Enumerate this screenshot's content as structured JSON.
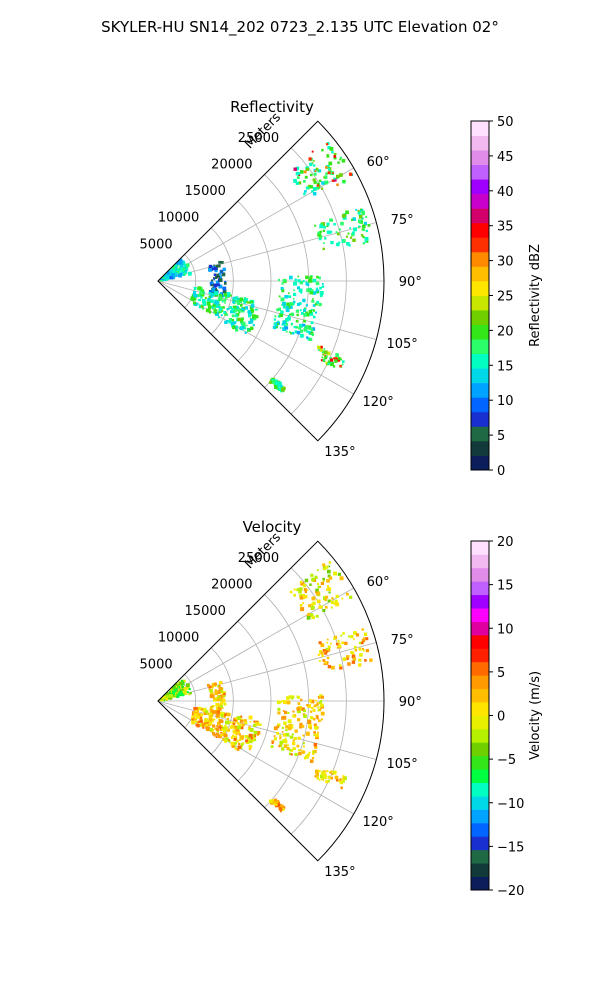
{
  "figure": {
    "suptitle": "SKYLER-HU  SN14_202  0723_2.135 UTC Elevation 02°"
  },
  "chart_data": [
    {
      "type": "heatmap",
      "projection": "polar sector",
      "title": "Reflectivity",
      "radial_label": "Meters",
      "radial_ticks": [
        "5000",
        "10000",
        "15000",
        "20000",
        "25000"
      ],
      "radial_tick_values": [
        5000,
        10000,
        15000,
        20000,
        25000
      ],
      "radial_range": [
        0,
        30000
      ],
      "azimuth_ticks": [
        "60°",
        "75°",
        "90°",
        "105°",
        "120°",
        "135°"
      ],
      "azimuth_tick_values": [
        60,
        75,
        90,
        105,
        120,
        135
      ],
      "azimuth_range": [
        45,
        135
      ],
      "grid": true,
      "colorbar": {
        "label": "Reflectivity dBZ",
        "vmin": 0,
        "vmax": 50,
        "ticks": [
          "0",
          "5",
          "10",
          "15",
          "20",
          "25",
          "30",
          "35",
          "40",
          "45",
          "50"
        ],
        "tick_values": [
          0,
          5,
          10,
          15,
          20,
          25,
          30,
          35,
          40,
          45,
          50
        ]
      },
      "echo_regions": [
        {
          "az": [
            50,
            62
          ],
          "range": [
            22500,
            29500
          ],
          "value": 18,
          "peak": 36
        },
        {
          "az": [
            46,
            78
          ],
          "range": [
            500,
            4500
          ],
          "value": 14
        },
        {
          "az": [
            72,
            104
          ],
          "range": [
            7000,
            9000
          ],
          "value": 8
        },
        {
          "az": [
            100,
            122
          ],
          "range": [
            5000,
            14000
          ],
          "value": 17
        },
        {
          "az": [
            88,
            112
          ],
          "range": [
            16000,
            22000
          ],
          "value": 16
        },
        {
          "az": [
            112,
            116
          ],
          "range": [
            23000,
            27000
          ],
          "value": 20,
          "peak": 36
        },
        {
          "az": [
            70,
            80
          ],
          "range": [
            22000,
            29000
          ],
          "value": 18
        },
        {
          "az": [
            130,
            132
          ],
          "range": [
            20000,
            22000
          ],
          "value": 18
        }
      ]
    },
    {
      "type": "heatmap",
      "projection": "polar sector",
      "title": "Velocity",
      "radial_label": "Meters",
      "radial_ticks": [
        "5000",
        "10000",
        "15000",
        "20000",
        "25000"
      ],
      "radial_tick_values": [
        5000,
        10000,
        15000,
        20000,
        25000
      ],
      "radial_range": [
        0,
        30000
      ],
      "azimuth_ticks": [
        "60°",
        "75°",
        "90°",
        "105°",
        "120°",
        "135°"
      ],
      "azimuth_tick_values": [
        60,
        75,
        90,
        105,
        120,
        135
      ],
      "azimuth_range": [
        45,
        135
      ],
      "grid": true,
      "colorbar": {
        "label": "Velocity (m/s)",
        "vmin": -20,
        "vmax": 20,
        "ticks": [
          "−20",
          "−15",
          "−10",
          "−5",
          "0",
          "5",
          "10",
          "15",
          "20"
        ],
        "tick_values": [
          -20,
          -15,
          -10,
          -5,
          0,
          5,
          10,
          15,
          20
        ]
      },
      "echo_regions": [
        {
          "az": [
            50,
            62
          ],
          "range": [
            22500,
            29500
          ],
          "value": 0
        },
        {
          "az": [
            46,
            78
          ],
          "range": [
            500,
            4500
          ],
          "value": -3
        },
        {
          "az": [
            72,
            104
          ],
          "range": [
            7000,
            9000
          ],
          "value": 1
        },
        {
          "az": [
            100,
            122
          ],
          "range": [
            5000,
            14000
          ],
          "value": 2
        },
        {
          "az": [
            88,
            112
          ],
          "range": [
            16000,
            22000
          ],
          "value": 1
        },
        {
          "az": [
            112,
            116
          ],
          "range": [
            23000,
            27000
          ],
          "value": 1
        },
        {
          "az": [
            70,
            80
          ],
          "range": [
            22000,
            29000
          ],
          "value": 2
        },
        {
          "az": [
            130,
            132
          ],
          "range": [
            20000,
            22000
          ],
          "value": 3
        }
      ]
    }
  ],
  "colormaps": {
    "reflectivity": [
      "#0b1e5b",
      "#123a3a",
      "#1f6a45",
      "#1a2fd0",
      "#0066ff",
      "#00a3ff",
      "#00d8e8",
      "#00ffc0",
      "#2bff6a",
      "#33e61a",
      "#6fd000",
      "#c7e600",
      "#ffe600",
      "#ffbe00",
      "#ff8a00",
      "#ff3000",
      "#ff0000",
      "#d4006a",
      "#c900c9",
      "#a000ff",
      "#c060ff",
      "#e08ce8",
      "#f2b8f0",
      "#ffe0ff"
    ],
    "velocity": [
      "#0b1e5b",
      "#123a3a",
      "#1f6a45",
      "#1a2fd0",
      "#0066ff",
      "#00a3ff",
      "#00d8e8",
      "#00ffc0",
      "#00ff40",
      "#33e61a",
      "#6fd000",
      "#b5f000",
      "#e8f000",
      "#ffe600",
      "#ffbe00",
      "#ff9a00",
      "#ff6a00",
      "#ff2000",
      "#ff0000",
      "#e000a0",
      "#ff00ff",
      "#a000ff",
      "#c060ff",
      "#e08ce8",
      "#f2b8f0",
      "#ffe0ff"
    ]
  }
}
